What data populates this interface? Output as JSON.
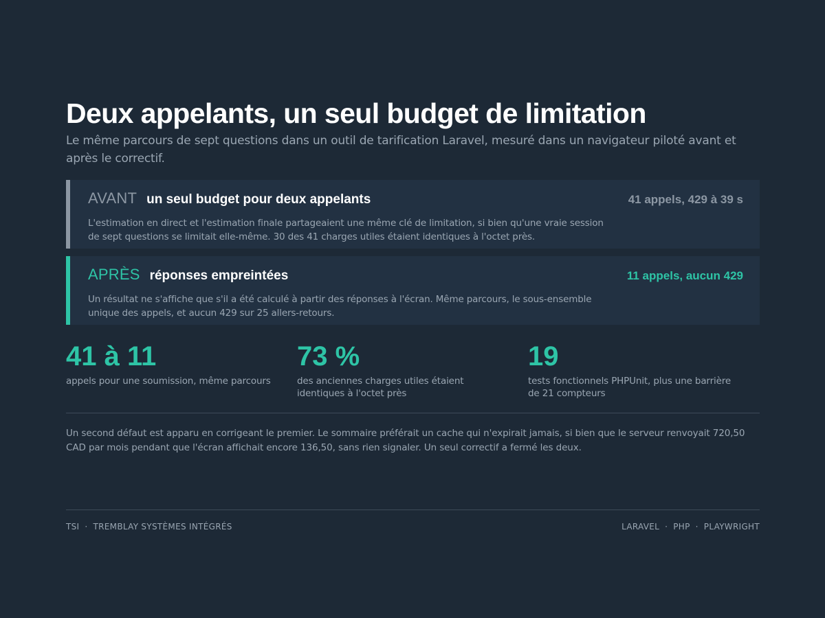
{
  "header": {
    "title": "Deux appelants, un seul budget de limitation",
    "subtitle": "Le même parcours de sept questions dans un outil de tarification Laravel, mesuré dans un navigateur piloté avant et après le correctif."
  },
  "comparison": {
    "before": {
      "tag": "AVANT",
      "label": "un seul budget pour deux appelants",
      "metric": "41 appels, 429 à 39 s",
      "description": "L'estimation en direct et l'estimation finale partageaient une même clé de limitation, si bien qu'une vraie session de sept questions se limitait elle-même. 30 des 41 charges utiles étaient identiques à l'octet près."
    },
    "after": {
      "tag": "APRÈS",
      "label": "réponses empreintées",
      "metric": "11 appels, aucun 429",
      "description": "Un résultat ne s'affiche que s'il a été calculé à partir des réponses à l'écran. Même parcours, le sous-ensemble unique des appels, et aucun 429 sur 25 allers-retours."
    }
  },
  "stats": [
    {
      "value": "41 à 11",
      "label": "appels pour une soumission, même parcours"
    },
    {
      "value": "73 %",
      "label": "des anciennes charges utiles étaient identiques à l'octet près"
    },
    {
      "value": "19",
      "label": "tests fonctionnels PHPUnit, plus une barrière de 21 compteurs"
    }
  ],
  "note": "Un second défaut est apparu en corrigeant le premier. Le sommaire préférait un cache qui n'expirait jamais, si bien que le serveur renvoyait 720,50 CAD par mois pendant que l'écran affichait encore 136,50, sans rien signaler. Un seul correctif a fermé les deux.",
  "footer": {
    "left": [
      "TSI",
      "TREMBLAY SYSTÈMES INTÉGRÉS"
    ],
    "right": [
      "LARAVEL",
      "PHP",
      "PLAYWRIGHT"
    ],
    "separator": "·"
  },
  "colors": {
    "background": "#1d2936",
    "panel": "#223142",
    "accent": "#2ec4a6",
    "muted": "#8c97a3",
    "text_secondary": "#9aa6b2"
  }
}
